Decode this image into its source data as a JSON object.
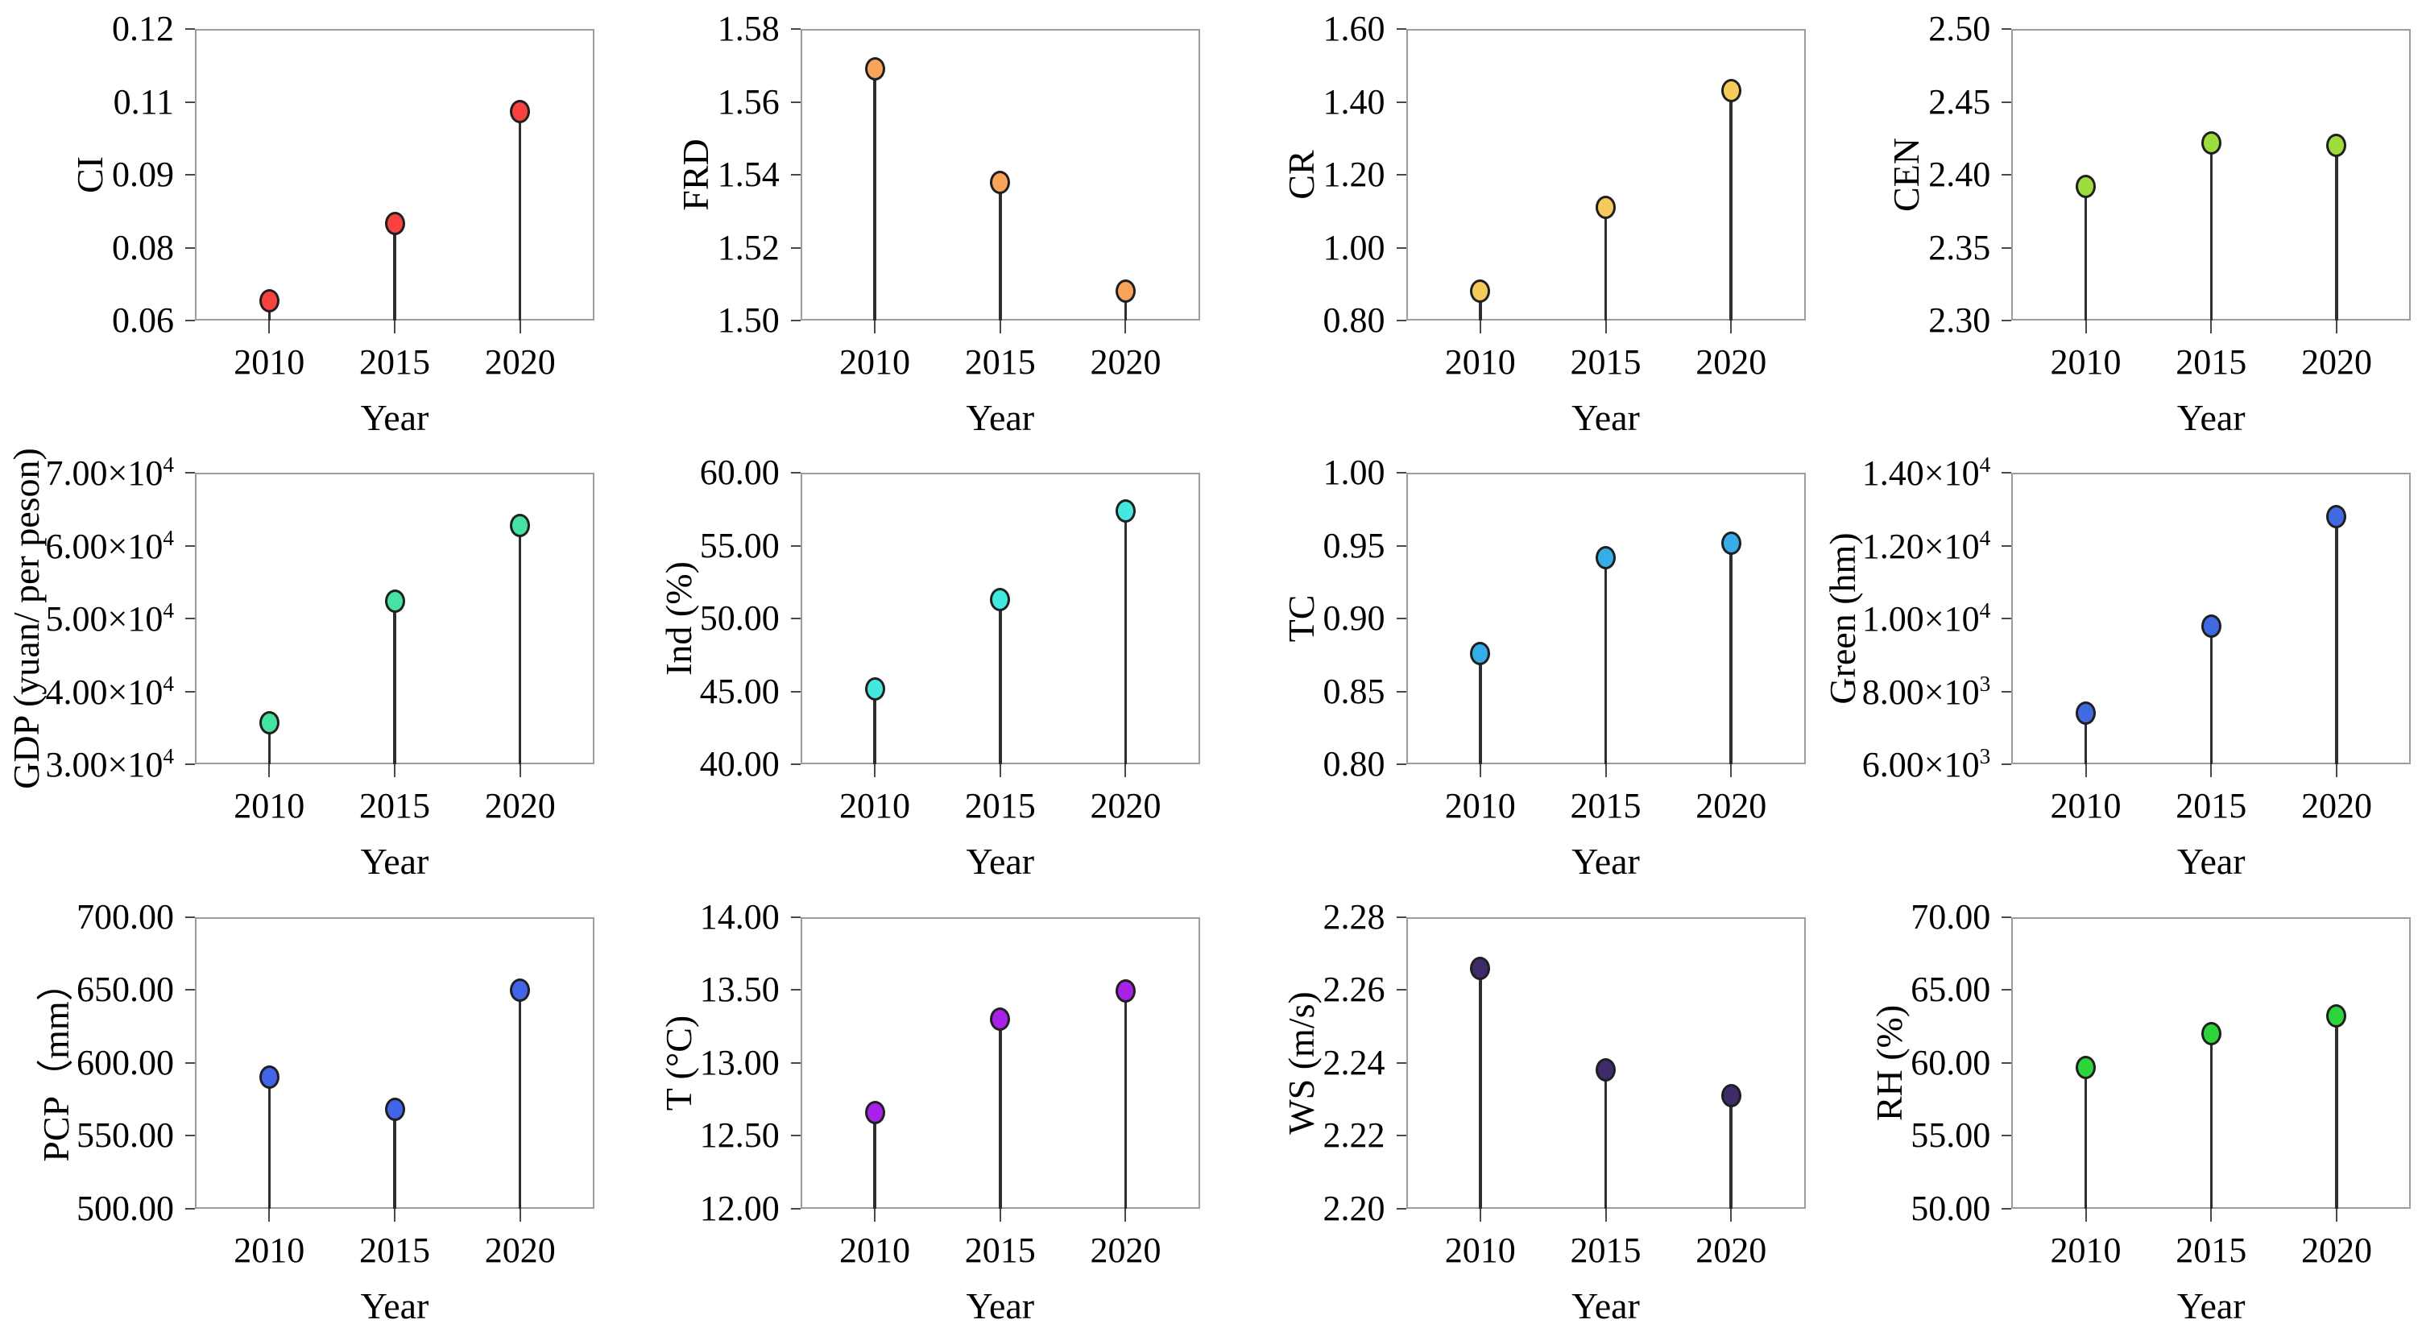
{
  "figure": {
    "xlabel": "Year",
    "categories": [
      "2010",
      "2015",
      "2020"
    ],
    "stem_color": "#2e2e2e",
    "axis_color": "#9c9c9c"
  },
  "chart_data": [
    {
      "id": "ci",
      "type": "scatter",
      "style": "lollipop-stem",
      "title": "",
      "ylabel": "CI",
      "xlabel": "Year",
      "categories": [
        "2010",
        "2015",
        "2020"
      ],
      "values": [
        0.064,
        0.08,
        0.103
      ],
      "ylim": [
        0.06,
        0.12
      ],
      "yticks": [
        {
          "v": 0.06,
          "label": "0.06"
        },
        {
          "v": 0.075,
          "label": "0.08"
        },
        {
          "v": 0.09,
          "label": "0.09"
        },
        {
          "v": 0.105,
          "label": "0.11"
        },
        {
          "v": 0.12,
          "label": "0.12"
        }
      ],
      "marker_color": "#f8423f"
    },
    {
      "id": "frd",
      "type": "scatter",
      "style": "lollipop-stem",
      "title": "",
      "ylabel": "FRD",
      "xlabel": "Year",
      "categories": [
        "2010",
        "2015",
        "2020"
      ],
      "values": [
        1.569,
        1.538,
        1.508
      ],
      "ylim": [
        1.5,
        1.58
      ],
      "yticks": [
        {
          "v": 1.5,
          "label": "1.50"
        },
        {
          "v": 1.52,
          "label": "1.52"
        },
        {
          "v": 1.54,
          "label": "1.54"
        },
        {
          "v": 1.56,
          "label": "1.56"
        },
        {
          "v": 1.58,
          "label": "1.58"
        }
      ],
      "marker_color": "#f9a35b"
    },
    {
      "id": "cr",
      "type": "scatter",
      "style": "lollipop-stem",
      "title": "",
      "ylabel": "CR",
      "xlabel": "Year",
      "categories": [
        "2010",
        "2015",
        "2020"
      ],
      "values": [
        0.88,
        1.11,
        1.43
      ],
      "ylim": [
        0.8,
        1.6
      ],
      "yticks": [
        {
          "v": 0.8,
          "label": "0.80"
        },
        {
          "v": 1.0,
          "label": "1.00"
        },
        {
          "v": 1.2,
          "label": "1.20"
        },
        {
          "v": 1.4,
          "label": "1.40"
        },
        {
          "v": 1.6,
          "label": "1.60"
        }
      ],
      "marker_color": "#f6cb5c"
    },
    {
      "id": "cen",
      "type": "scatter",
      "style": "lollipop-stem",
      "title": "",
      "ylabel": "CEN",
      "xlabel": "Year",
      "categories": [
        "2010",
        "2015",
        "2020"
      ],
      "values": [
        2.392,
        2.422,
        2.42
      ],
      "ylim": [
        2.3,
        2.5
      ],
      "yticks": [
        {
          "v": 2.3,
          "label": "2.30"
        },
        {
          "v": 2.35,
          "label": "2.35"
        },
        {
          "v": 2.4,
          "label": "2.40"
        },
        {
          "v": 2.45,
          "label": "2.45"
        },
        {
          "v": 2.5,
          "label": "2.50"
        }
      ],
      "marker_color": "#9edc3e"
    },
    {
      "id": "gdp",
      "type": "scatter",
      "style": "lollipop-stem",
      "title": "",
      "ylabel": "GDP (yuan/ per peson)",
      "xlabel": "Year",
      "categories": [
        "2010",
        "2015",
        "2020"
      ],
      "values": [
        35700,
        52400,
        62800
      ],
      "ylim": [
        30000,
        70000
      ],
      "yticks": [
        {
          "v": 30000,
          "label": "3.00×10^4"
        },
        {
          "v": 40000,
          "label": "4.00×10^4"
        },
        {
          "v": 50000,
          "label": "5.00×10^4"
        },
        {
          "v": 60000,
          "label": "6.00×10^4"
        },
        {
          "v": 70000,
          "label": "7.00×10^4"
        }
      ],
      "marker_color": "#44e3a2"
    },
    {
      "id": "ind",
      "type": "scatter",
      "style": "lollipop-stem",
      "title": "",
      "ylabel": "Ind (%)",
      "xlabel": "Year",
      "categories": [
        "2010",
        "2015",
        "2020"
      ],
      "values": [
        45.2,
        51.3,
        57.4
      ],
      "ylim": [
        40,
        60
      ],
      "yticks": [
        {
          "v": 40,
          "label": "40.00"
        },
        {
          "v": 45,
          "label": "45.00"
        },
        {
          "v": 50,
          "label": "50.00"
        },
        {
          "v": 55,
          "label": "55.00"
        },
        {
          "v": 60,
          "label": "60.00"
        }
      ],
      "marker_color": "#43e8df"
    },
    {
      "id": "tc",
      "type": "scatter",
      "style": "lollipop-stem",
      "title": "",
      "ylabel": "TC",
      "xlabel": "Year",
      "categories": [
        "2010",
        "2015",
        "2020"
      ],
      "values": [
        0.876,
        0.942,
        0.952
      ],
      "ylim": [
        0.8,
        1.0
      ],
      "yticks": [
        {
          "v": 0.8,
          "label": "0.80"
        },
        {
          "v": 0.85,
          "label": "0.85"
        },
        {
          "v": 0.9,
          "label": "0.90"
        },
        {
          "v": 0.95,
          "label": "0.95"
        },
        {
          "v": 1.0,
          "label": "1.00"
        }
      ],
      "marker_color": "#36ade8"
    },
    {
      "id": "green",
      "type": "scatter",
      "style": "lollipop-stem",
      "title": "",
      "ylabel": "Green (hm)",
      "xlabel": "Year",
      "categories": [
        "2010",
        "2015",
        "2020"
      ],
      "values": [
        7400,
        9800,
        12800
      ],
      "ylim": [
        6000,
        14000
      ],
      "yticks": [
        {
          "v": 6000,
          "label": "6.00×10^3"
        },
        {
          "v": 8000,
          "label": "8.00×10^3"
        },
        {
          "v": 10000,
          "label": "1.00×10^4"
        },
        {
          "v": 12000,
          "label": "1.20×10^4"
        },
        {
          "v": 14000,
          "label": "1.40×10^4"
        }
      ],
      "marker_color": "#4169e1"
    },
    {
      "id": "pcp",
      "type": "scatter",
      "style": "lollipop-stem",
      "title": "",
      "ylabel": "PCP（mm）",
      "xlabel": "Year",
      "categories": [
        "2010",
        "2015",
        "2020"
      ],
      "values": [
        590,
        568,
        650
      ],
      "ylim": [
        500,
        700
      ],
      "yticks": [
        {
          "v": 500,
          "label": "500.00"
        },
        {
          "v": 550,
          "label": "550.00"
        },
        {
          "v": 600,
          "label": "600.00"
        },
        {
          "v": 650,
          "label": "650.00"
        },
        {
          "v": 700,
          "label": "700.00"
        }
      ],
      "marker_color": "#4164e8"
    },
    {
      "id": "t",
      "type": "scatter",
      "style": "lollipop-stem",
      "title": "",
      "ylabel": "T (°C)",
      "xlabel": "Year",
      "categories": [
        "2010",
        "2015",
        "2020"
      ],
      "values": [
        12.66,
        13.3,
        13.49
      ],
      "ylim": [
        12.0,
        14.0
      ],
      "yticks": [
        {
          "v": 12.0,
          "label": "12.00"
        },
        {
          "v": 12.5,
          "label": "12.50"
        },
        {
          "v": 13.0,
          "label": "13.00"
        },
        {
          "v": 13.5,
          "label": "13.50"
        },
        {
          "v": 14.0,
          "label": "14.00"
        }
      ],
      "marker_color": "#a821e8"
    },
    {
      "id": "ws",
      "type": "scatter",
      "style": "lollipop-stem",
      "title": "",
      "ylabel": "WS (m/s)",
      "xlabel": "Year",
      "categories": [
        "2010",
        "2015",
        "2020"
      ],
      "values": [
        2.266,
        2.238,
        2.231
      ],
      "ylim": [
        2.2,
        2.28
      ],
      "yticks": [
        {
          "v": 2.2,
          "label": "2.20"
        },
        {
          "v": 2.22,
          "label": "2.22"
        },
        {
          "v": 2.24,
          "label": "2.24"
        },
        {
          "v": 2.26,
          "label": "2.26"
        },
        {
          "v": 2.28,
          "label": "2.28"
        }
      ],
      "marker_color": "#3e2b69"
    },
    {
      "id": "rh",
      "type": "scatter",
      "style": "lollipop-stem",
      "title": "",
      "ylabel": "RH (%)",
      "xlabel": "Year",
      "categories": [
        "2010",
        "2015",
        "2020"
      ],
      "values": [
        59.7,
        62.0,
        63.2
      ],
      "ylim": [
        50,
        70
      ],
      "yticks": [
        {
          "v": 50,
          "label": "50.00"
        },
        {
          "v": 55,
          "label": "55.00"
        },
        {
          "v": 60,
          "label": "60.00"
        },
        {
          "v": 65,
          "label": "65.00"
        },
        {
          "v": 70,
          "label": "70.00"
        }
      ],
      "marker_color": "#2ed53a"
    }
  ]
}
